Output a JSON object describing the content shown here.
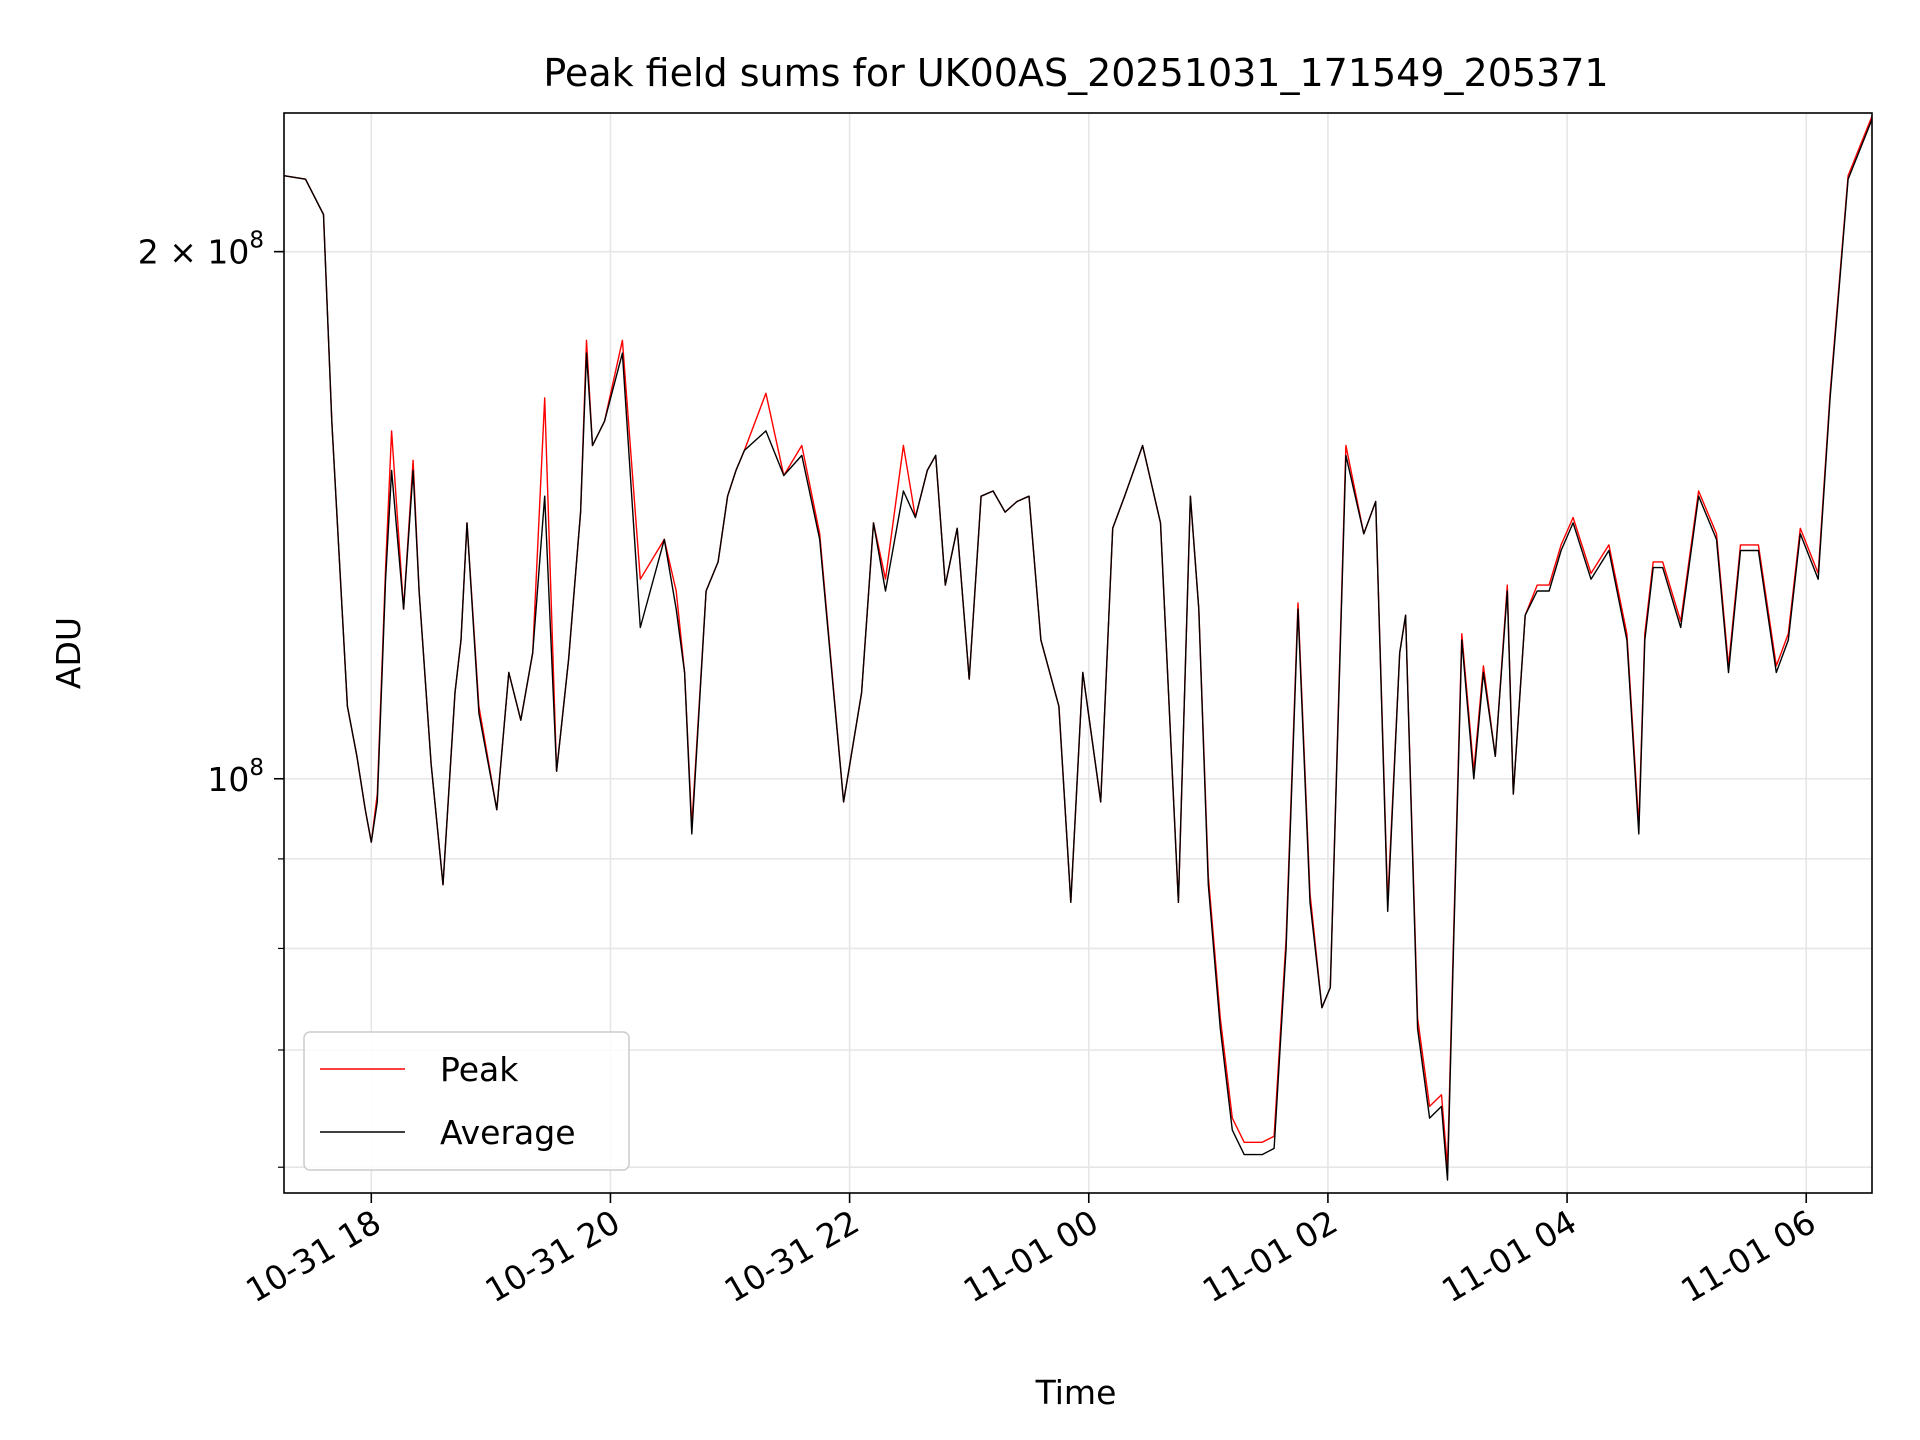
{
  "chart_data": {
    "type": "line",
    "title": "Peak field sums for UK00AS_20251031_171549_205371",
    "xlabel": "Time",
    "ylabel": "ADU",
    "y_scale": "log",
    "ylim": [
      58000000,
      240000000
    ],
    "x_unit": "hours since 10-31 00:00",
    "xlim": [
      17.27,
      30.55
    ],
    "grid": true,
    "legend_position": "lower-left",
    "x_ticks": [
      {
        "value": 18,
        "label": "10-31 18"
      },
      {
        "value": 20,
        "label": "10-31 20"
      },
      {
        "value": 22,
        "label": "10-31 22"
      },
      {
        "value": 24,
        "label": "11-01 00"
      },
      {
        "value": 26,
        "label": "11-01 02"
      },
      {
        "value": 28,
        "label": "11-01 04"
      },
      {
        "value": 30,
        "label": "11-01 06"
      }
    ],
    "y_major_ticks": [
      {
        "value": 100000000,
        "base": "10",
        "exp": "8"
      },
      {
        "value": 200000000,
        "base": "2 × 10",
        "exp": "8"
      }
    ],
    "y_minor_ticks": [
      60000000,
      70000000,
      80000000,
      90000000
    ],
    "x": [
      17.27,
      17.45,
      17.6,
      17.67,
      17.8,
      17.88,
      17.95,
      18.0,
      18.05,
      18.12,
      18.17,
      18.27,
      18.35,
      18.4,
      18.5,
      18.6,
      18.7,
      18.75,
      18.8,
      18.9,
      19.05,
      19.15,
      19.25,
      19.35,
      19.45,
      19.55,
      19.65,
      19.75,
      19.8,
      19.85,
      19.95,
      20.1,
      20.25,
      20.45,
      20.55,
      20.62,
      20.68,
      20.8,
      20.9,
      20.98,
      21.05,
      21.12,
      21.3,
      21.45,
      21.6,
      21.75,
      21.95,
      22.1,
      22.2,
      22.3,
      22.45,
      22.55,
      22.65,
      22.72,
      22.8,
      22.9,
      23.0,
      23.1,
      23.2,
      23.3,
      23.4,
      23.5,
      23.6,
      23.75,
      23.85,
      23.95,
      24.1,
      24.2,
      24.3,
      24.45,
      24.6,
      24.75,
      24.85,
      24.92,
      25.0,
      25.1,
      25.2,
      25.3,
      25.45,
      25.55,
      25.65,
      25.75,
      25.85,
      25.95,
      26.02,
      26.15,
      26.3,
      26.4,
      26.5,
      26.6,
      26.65,
      26.75,
      26.85,
      26.95,
      27.0,
      27.05,
      27.12,
      27.22,
      27.3,
      27.4,
      27.5,
      27.55,
      27.65,
      27.75,
      27.85,
      27.95,
      28.05,
      28.2,
      28.35,
      28.5,
      28.6,
      28.65,
      28.72,
      28.8,
      28.95,
      29.1,
      29.25,
      29.35,
      29.45,
      29.6,
      29.75,
      29.85,
      29.95,
      30.1,
      30.2,
      30.35,
      30.55
    ],
    "series": [
      {
        "name": "Average",
        "color": "#000000",
        "values": [
          221000000,
          220000000,
          210000000,
          160000000,
          110000000,
          103000000,
          96000000,
          92000000,
          97000000,
          130000000,
          150000000,
          125000000,
          150000000,
          128000000,
          102000000,
          87000000,
          112000000,
          120000000,
          140000000,
          109000000,
          96000000,
          115000000,
          108000000,
          118000000,
          145000000,
          101000000,
          117000000,
          142000000,
          175000000,
          155000000,
          160000000,
          175000000,
          122000000,
          137000000,
          125000000,
          115000000,
          93000000,
          128000000,
          133000000,
          145000000,
          150000000,
          154000000,
          158000000,
          149000000,
          153000000,
          137000000,
          97000000,
          112000000,
          140000000,
          128000000,
          146000000,
          141000000,
          150000000,
          153000000,
          129000000,
          139000000,
          114000000,
          145000000,
          146000000,
          142000000,
          144000000,
          145000000,
          120000000,
          110000000,
          85000000,
          115000000,
          97000000,
          139000000,
          145000000,
          155000000,
          140000000,
          85000000,
          145000000,
          125000000,
          87000000,
          72000000,
          63000000,
          61000000,
          61000000,
          61500000,
          80000000,
          125000000,
          85000000,
          74000000,
          76000000,
          153000000,
          138000000,
          144000000,
          84000000,
          118000000,
          124000000,
          72000000,
          64000000,
          65000000,
          59000000,
          80000000,
          120000000,
          100000000,
          115000000,
          103000000,
          128000000,
          98000000,
          124000000,
          128000000,
          128000000,
          135000000,
          140000000,
          130000000,
          135000000,
          120000000,
          93000000,
          120000000,
          132000000,
          132000000,
          122000000,
          145000000,
          137000000,
          115000000,
          135000000,
          135000000,
          115000000,
          120000000,
          138000000,
          130000000,
          165000000,
          220000000,
          238000000
        ]
      },
      {
        "name": "Peak",
        "color": "#ff0000",
        "values": [
          221000000,
          220000000,
          210000000,
          160000000,
          110000000,
          103000000,
          96000000,
          92000000,
          98000000,
          132000000,
          158000000,
          125000000,
          152000000,
          128000000,
          102000000,
          87000000,
          112000000,
          120000000,
          140000000,
          110000000,
          96000000,
          115000000,
          108000000,
          118000000,
          165000000,
          101000000,
          117000000,
          142000000,
          178000000,
          155000000,
          160000000,
          178000000,
          130000000,
          137000000,
          128000000,
          115000000,
          94000000,
          128000000,
          133000000,
          145000000,
          150000000,
          154000000,
          166000000,
          149000000,
          155000000,
          138000000,
          97000000,
          112000000,
          140000000,
          130000000,
          155000000,
          141000000,
          150000000,
          153000000,
          129000000,
          139000000,
          114000000,
          145000000,
          146000000,
          142000000,
          144000000,
          145000000,
          120000000,
          110000000,
          85000000,
          115000000,
          97000000,
          139000000,
          145000000,
          155000000,
          140000000,
          85000000,
          145000000,
          125000000,
          88000000,
          73000000,
          64000000,
          62000000,
          62000000,
          62500000,
          81000000,
          126000000,
          86000000,
          74000000,
          76000000,
          155000000,
          138000000,
          144000000,
          85000000,
          118000000,
          124000000,
          73000000,
          65000000,
          66000000,
          60000000,
          81000000,
          121000000,
          101000000,
          116000000,
          103000000,
          129000000,
          98000000,
          124000000,
          129000000,
          129000000,
          136000000,
          141000000,
          131000000,
          136000000,
          121000000,
          94000000,
          121000000,
          133000000,
          133000000,
          123000000,
          146000000,
          138000000,
          116000000,
          136000000,
          136000000,
          116000000,
          121000000,
          139000000,
          131000000,
          166000000,
          221000000,
          239000000
        ]
      }
    ]
  }
}
